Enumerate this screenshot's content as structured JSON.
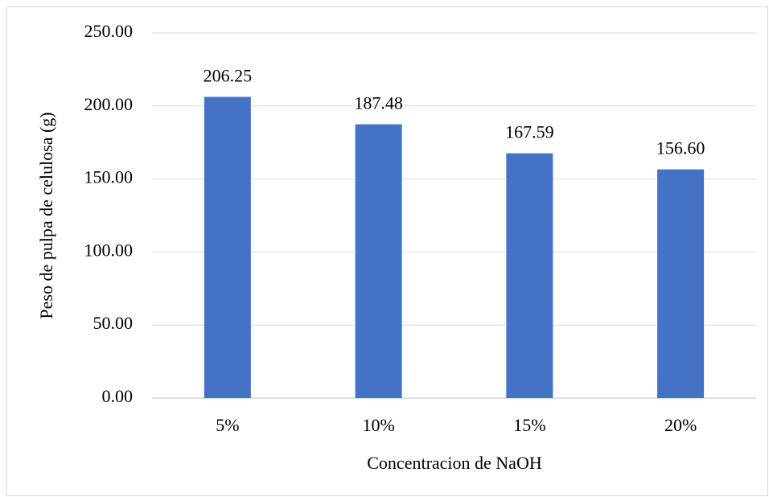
{
  "chart_data": {
    "type": "bar",
    "x_label": "Concentracion de NaOH",
    "y_label": "Peso de pulpa de celulosa (g)",
    "categories": [
      "5%",
      "10%",
      "15%",
      "20%"
    ],
    "values": [
      206.25,
      187.48,
      167.59,
      156.6
    ],
    "value_labels": [
      "206.25",
      "187.48",
      "167.59",
      "156.60"
    ],
    "color": "#4472c4",
    "ylim": [
      0,
      250
    ],
    "yticks": [
      {
        "value": 0,
        "label": "0.00"
      },
      {
        "value": 50,
        "label": "50.00"
      },
      {
        "value": 100,
        "label": "100.00"
      },
      {
        "value": 150,
        "label": "150.00"
      },
      {
        "value": 200,
        "label": "200.00"
      },
      {
        "value": 250,
        "label": "250.00"
      }
    ],
    "grid": true
  }
}
